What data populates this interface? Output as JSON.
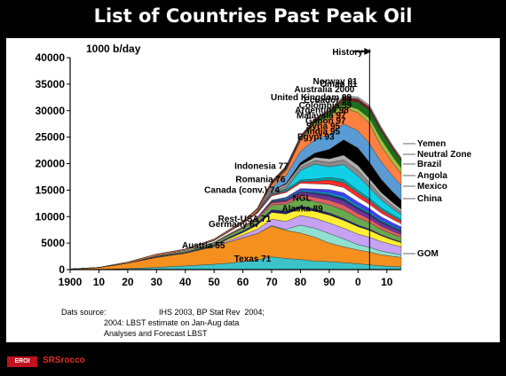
{
  "title": "List of Countries Past Peak Oil",
  "chart_data": {
    "type": "area",
    "unit_label": "1000 b/day",
    "ylim": [
      0,
      40000
    ],
    "y_ticks": [
      0,
      5000,
      10000,
      15000,
      20000,
      25000,
      30000,
      35000,
      40000
    ],
    "y_tick_labels": [
      "0",
      "5000",
      "10000",
      "15000",
      "20000",
      "25000",
      "30000",
      "35000",
      "40000"
    ],
    "xlim": [
      1900,
      2015
    ],
    "x_ticks": [
      1900,
      1910,
      1920,
      1930,
      1940,
      1950,
      1960,
      1970,
      1980,
      1990,
      2000,
      2010
    ],
    "x_tick_labels": [
      "1900",
      "10",
      "20",
      "30",
      "40",
      "50",
      "60",
      "70",
      "80",
      "90",
      "0",
      "10"
    ],
    "history_year": 2004,
    "history_label": "History",
    "x": [
      1900,
      1910,
      1920,
      1930,
      1940,
      1950,
      1955,
      1960,
      1965,
      1970,
      1975,
      1980,
      1985,
      1990,
      1995,
      2000,
      2004,
      2008,
      2012,
      2015
    ],
    "series": [
      {
        "name": "Texas 71",
        "color": "#3cc3c9",
        "values": [
          0,
          0,
          200,
          400,
          700,
          1000,
          1200,
          1500,
          1800,
          2400,
          2100,
          1900,
          1600,
          1500,
          1300,
          1100,
          900,
          700,
          600,
          500
        ]
      },
      {
        "name": "Rest-USA 71",
        "color": "#f5901f",
        "values": [
          100,
          400,
          1000,
          1900,
          2400,
          3300,
          4000,
          4500,
          5000,
          5800,
          5300,
          5000,
          4500,
          3500,
          3000,
          2600,
          2400,
          2100,
          1900,
          1800
        ]
      },
      {
        "name": "Alaska 89",
        "color": "#8fe0d0",
        "values": [
          0,
          0,
          0,
          0,
          0,
          0,
          0,
          0,
          0,
          100,
          200,
          1500,
          1700,
          1800,
          1500,
          1000,
          900,
          700,
          600,
          500
        ]
      },
      {
        "name": "NGL",
        "color": "#c6a2f5",
        "values": [
          0,
          0,
          0,
          0,
          0,
          100,
          300,
          500,
          800,
          1200,
          1500,
          1800,
          1900,
          2000,
          2000,
          2000,
          1900,
          1800,
          1600,
          1500
        ]
      },
      {
        "name": "Canada (conv.) 74",
        "color": "#ffee33",
        "values": [
          0,
          0,
          0,
          0,
          0,
          100,
          300,
          500,
          800,
          1300,
          1400,
          1300,
          1300,
          1500,
          1500,
          1400,
          1300,
          1100,
          900,
          800
        ]
      },
      {
        "name": "Romania 76",
        "color": "#222266",
        "values": [
          0,
          0,
          0,
          100,
          150,
          200,
          250,
          300,
          400,
          500,
          550,
          500,
          450,
          400,
          350,
          300,
          250,
          200,
          180,
          150
        ]
      },
      {
        "name": "Indonesia 77",
        "color": "#6aa84f",
        "values": [
          0,
          0,
          0,
          100,
          200,
          300,
          400,
          500,
          600,
          900,
          1300,
          1600,
          1400,
          1500,
          1600,
          1400,
          1200,
          1000,
          900,
          850
        ]
      },
      {
        "name": "Egypt 93",
        "color": "#e06060",
        "values": [
          0,
          0,
          0,
          0,
          0,
          100,
          150,
          200,
          300,
          400,
          450,
          600,
          800,
          900,
          950,
          800,
          700,
          600,
          550,
          500
        ]
      },
      {
        "name": "India 95",
        "color": "#7030a0",
        "values": [
          0,
          0,
          0,
          0,
          0,
          50,
          80,
          100,
          200,
          200,
          300,
          400,
          600,
          700,
          750,
          700,
          650,
          600,
          550,
          500
        ]
      },
      {
        "name": "Syria 95",
        "color": "#1f3b73",
        "values": [
          0,
          0,
          0,
          0,
          0,
          0,
          0,
          0,
          0,
          100,
          150,
          200,
          300,
          400,
          500,
          450,
          400,
          350,
          300,
          280
        ]
      },
      {
        "name": "Gabon 97",
        "color": "#00b0f0",
        "values": [
          0,
          0,
          0,
          0,
          0,
          0,
          0,
          0,
          0,
          100,
          200,
          200,
          250,
          300,
          350,
          300,
          250,
          220,
          200,
          180
        ]
      },
      {
        "name": "Malaysia 97",
        "color": "#4040ff",
        "values": [
          0,
          0,
          0,
          0,
          0,
          0,
          0,
          0,
          0,
          100,
          200,
          300,
          400,
          600,
          700,
          700,
          650,
          600,
          550,
          500
        ]
      },
      {
        "name": "Argentina 98",
        "color": "#ffffff",
        "values": [
          0,
          0,
          0,
          100,
          200,
          300,
          400,
          600,
          700,
          800,
          900,
          1000,
          1000,
          1000,
          1000,
          900,
          800,
          700,
          650,
          600
        ]
      },
      {
        "name": "Colombia 99",
        "color": "#ff2a2a",
        "values": [
          0,
          0,
          0,
          0,
          0,
          100,
          120,
          150,
          200,
          200,
          250,
          300,
          500,
          800,
          900,
          800,
          700,
          600,
          550,
          500
        ]
      },
      {
        "name": "Ecuador 99",
        "color": "#00a0a0",
        "values": [
          0,
          0,
          0,
          0,
          0,
          0,
          0,
          0,
          0,
          200,
          300,
          300,
          400,
          500,
          600,
          500,
          450,
          400,
          350,
          300
        ]
      },
      {
        "name": "United Kingdom 99",
        "color": "#10d0e8",
        "values": [
          0,
          0,
          0,
          0,
          0,
          0,
          0,
          0,
          0,
          0,
          100,
          1800,
          2800,
          2000,
          2800,
          2700,
          2000,
          1500,
          1100,
          900
        ]
      },
      {
        "name": "Australia 2000",
        "color": "#8a8a8a",
        "values": [
          0,
          0,
          0,
          0,
          0,
          0,
          0,
          0,
          100,
          300,
          500,
          600,
          700,
          800,
          900,
          1100,
          900,
          700,
          600,
          500
        ]
      },
      {
        "name": "Oman 01",
        "color": "#b0b0b0",
        "values": [
          0,
          0,
          0,
          0,
          0,
          0,
          0,
          0,
          0,
          300,
          400,
          400,
          600,
          700,
          900,
          900,
          800,
          700,
          600,
          550
        ]
      },
      {
        "name": "Norway 01",
        "color": "#000000",
        "values": [
          0,
          0,
          0,
          0,
          0,
          0,
          0,
          0,
          0,
          0,
          200,
          500,
          800,
          1800,
          2900,
          3300,
          3100,
          2500,
          2000,
          1700
        ]
      },
      {
        "name": "China",
        "color": "#5a9bd5",
        "values": [
          0,
          0,
          0,
          0,
          0,
          0,
          0,
          0,
          100,
          600,
          1500,
          2100,
          2500,
          2800,
          3000,
          3250,
          3500,
          3300,
          3000,
          2800
        ]
      },
      {
        "name": "Mexico",
        "color": "#ff8040",
        "values": [
          0,
          0,
          200,
          300,
          200,
          200,
          250,
          300,
          350,
          500,
          800,
          2000,
          2800,
          3000,
          3100,
          3400,
          3800,
          3000,
          2500,
          2200
        ]
      },
      {
        "name": "Angola",
        "color": "#a0c040",
        "values": [
          0,
          0,
          0,
          0,
          0,
          0,
          0,
          0,
          0,
          100,
          200,
          200,
          300,
          500,
          600,
          700,
          1000,
          1300,
          1200,
          1100
        ]
      },
      {
        "name": "Brazil",
        "color": "#1a6f1a",
        "values": [
          0,
          0,
          0,
          0,
          0,
          0,
          0,
          0,
          0,
          100,
          200,
          200,
          500,
          700,
          800,
          1300,
          1500,
          1500,
          1400,
          1300
        ]
      },
      {
        "name": "Neutral Zone",
        "color": "#7a1a1a",
        "values": [
          0,
          0,
          0,
          0,
          0,
          0,
          0,
          0,
          200,
          500,
          500,
          500,
          400,
          300,
          500,
          600,
          600,
          500,
          450,
          400
        ]
      },
      {
        "name": "Yemen",
        "color": "#a0a0a0",
        "values": [
          0,
          0,
          0,
          0,
          0,
          0,
          0,
          0,
          0,
          0,
          0,
          0,
          0,
          200,
          300,
          400,
          400,
          300,
          250,
          200
        ]
      }
    ],
    "labels": [
      {
        "text": "Norway 01",
        "x": 2001,
        "y": 35000
      },
      {
        "text": "Oman 01",
        "x": 2001,
        "y": 34500
      },
      {
        "text": "Australia 2000",
        "x": 2000,
        "y": 33500
      },
      {
        "text": "United Kingdom 99",
        "x": 1999,
        "y": 32000
      },
      {
        "text": "Ecuador 99",
        "x": 1999,
        "y": 31500
      },
      {
        "text": "Colombia 99",
        "x": 1999,
        "y": 30500
      },
      {
        "text": "Argentina 98",
        "x": 1998,
        "y": 29500
      },
      {
        "text": "Malaysia 97",
        "x": 1997,
        "y": 28500
      },
      {
        "text": "Gabon 97",
        "x": 1997,
        "y": 27500
      },
      {
        "text": "Syria 95",
        "x": 1995,
        "y": 26500
      },
      {
        "text": "India 95",
        "x": 1995,
        "y": 25500
      },
      {
        "text": "Egypt 93",
        "x": 1993,
        "y": 24500
      },
      {
        "text": "Indonesia 77",
        "x": 1977,
        "y": 19000
      },
      {
        "text": "Romania 76",
        "x": 1976,
        "y": 16500
      },
      {
        "text": "Canada (conv.) 74",
        "x": 1974,
        "y": 14500
      },
      {
        "text": "Germany 67",
        "x": 1967,
        "y": 8000
      },
      {
        "text": "Austria 55",
        "x": 1955,
        "y": 4000
      },
      {
        "text": "NGL",
        "x": 1985,
        "y": 13000
      },
      {
        "text": "Alaska 89",
        "x": 1989,
        "y": 11000
      },
      {
        "text": "Rest-USA 71",
        "x": 1971,
        "y": 9000
      },
      {
        "text": "Texas 71",
        "x": 1971,
        "y": 1500
      }
    ],
    "right_labels": [
      "Yemen",
      "Neutral Zone",
      "Brazil",
      "Angola",
      "Mexico",
      "China",
      "GOM"
    ]
  },
  "source": {
    "label": "Dats source:",
    "line1": "IHS 2003, BP Stat Rev  2004;",
    "line2": "2004: LBST estimate on Jan-Aug data",
    "line3": "Analyses and Forecast LBST"
  },
  "footer": {
    "logo_text": "EROI",
    "brand_text": "SRSrocco"
  }
}
